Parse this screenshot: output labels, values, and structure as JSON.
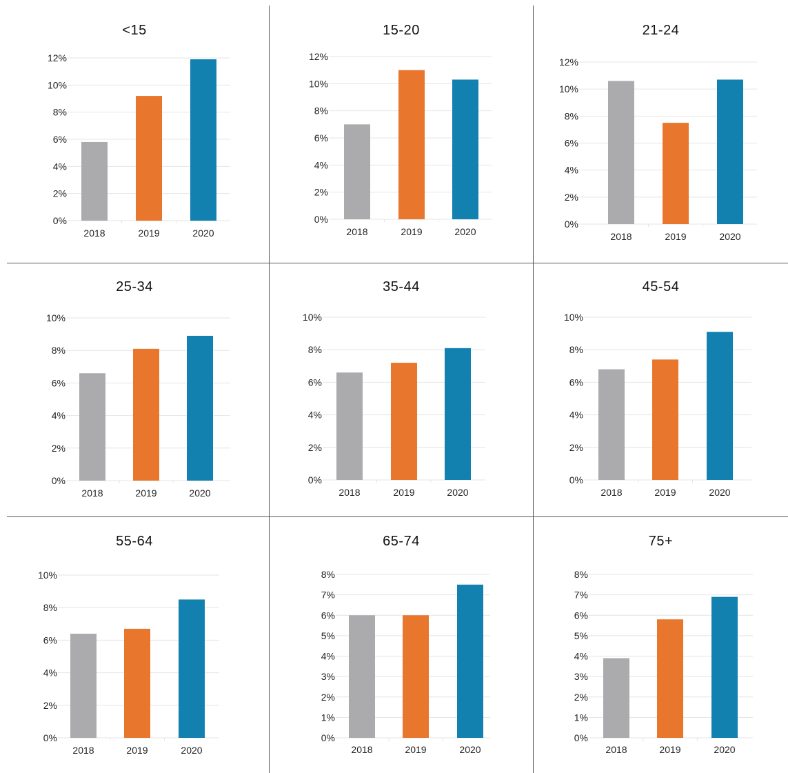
{
  "colors": {
    "2018": "#ABABAE",
    "2019": "#E8762D",
    "2020": "#1381B0",
    "gridline": "#E4E4E4",
    "divider": "#555555"
  },
  "chart_data": [
    {
      "type": "bar",
      "title": "<15",
      "categories": [
        "2018",
        "2019",
        "2020"
      ],
      "values": [
        5.8,
        9.2,
        11.9
      ],
      "ylim": [
        0,
        12
      ],
      "yticks": [
        0,
        2,
        4,
        6,
        8,
        10,
        12
      ],
      "ytick_labels": [
        "0%",
        "2%",
        "4%",
        "6%",
        "8%",
        "10%",
        "12%"
      ],
      "grid": true
    },
    {
      "type": "bar",
      "title": "15-20",
      "categories": [
        "2018",
        "2019",
        "2020"
      ],
      "values": [
        7.0,
        11.0,
        10.3
      ],
      "ylim": [
        0,
        12
      ],
      "yticks": [
        0,
        2,
        4,
        6,
        8,
        10,
        12
      ],
      "ytick_labels": [
        "0%",
        "2%",
        "4%",
        "6%",
        "8%",
        "10%",
        "12%"
      ],
      "grid": true
    },
    {
      "type": "bar",
      "title": "21-24",
      "categories": [
        "2018",
        "2019",
        "2020"
      ],
      "values": [
        10.6,
        7.5,
        10.7
      ],
      "ylim": [
        0,
        12
      ],
      "yticks": [
        0,
        2,
        4,
        6,
        8,
        10,
        12
      ],
      "ytick_labels": [
        "0%",
        "2%",
        "4%",
        "6%",
        "8%",
        "10%",
        "12%"
      ],
      "grid": true
    },
    {
      "type": "bar",
      "title": "25-34",
      "categories": [
        "2018",
        "2019",
        "2020"
      ],
      "values": [
        6.6,
        8.1,
        8.9
      ],
      "ylim": [
        0,
        10
      ],
      "yticks": [
        0,
        2,
        4,
        6,
        8,
        10
      ],
      "ytick_labels": [
        "0%",
        "2%",
        "4%",
        "6%",
        "8%",
        "10%"
      ],
      "grid": true
    },
    {
      "type": "bar",
      "title": "35-44",
      "categories": [
        "2018",
        "2019",
        "2020"
      ],
      "values": [
        6.6,
        7.2,
        8.1
      ],
      "ylim": [
        0,
        10
      ],
      "yticks": [
        0,
        2,
        4,
        6,
        8,
        10
      ],
      "ytick_labels": [
        "0%",
        "2%",
        "4%",
        "6%",
        "8%",
        "10%"
      ],
      "grid": true
    },
    {
      "type": "bar",
      "title": "45-54",
      "categories": [
        "2018",
        "2019",
        "2020"
      ],
      "values": [
        6.8,
        7.4,
        9.1
      ],
      "ylim": [
        0,
        10
      ],
      "yticks": [
        0,
        2,
        4,
        6,
        8,
        10
      ],
      "ytick_labels": [
        "0%",
        "2%",
        "4%",
        "6%",
        "8%",
        "10%"
      ],
      "grid": true
    },
    {
      "type": "bar",
      "title": "55-64",
      "categories": [
        "2018",
        "2019",
        "2020"
      ],
      "values": [
        6.4,
        6.7,
        8.5
      ],
      "ylim": [
        0,
        10
      ],
      "yticks": [
        0,
        2,
        4,
        6,
        8,
        10
      ],
      "ytick_labels": [
        "0%",
        "2%",
        "4%",
        "6%",
        "8%",
        "10%"
      ],
      "grid": true
    },
    {
      "type": "bar",
      "title": "65-74",
      "categories": [
        "2018",
        "2019",
        "2020"
      ],
      "values": [
        6.0,
        6.0,
        7.5
      ],
      "ylim": [
        0,
        8
      ],
      "yticks": [
        0,
        1,
        2,
        3,
        4,
        5,
        6,
        7,
        8
      ],
      "ytick_labels": [
        "0%",
        "1%",
        "2%",
        "3%",
        "4%",
        "5%",
        "6%",
        "7%",
        "8%"
      ],
      "grid": true
    },
    {
      "type": "bar",
      "title": "75+",
      "categories": [
        "2018",
        "2019",
        "2020"
      ],
      "values": [
        3.9,
        5.8,
        6.9
      ],
      "ylim": [
        0,
        8
      ],
      "yticks": [
        0,
        1,
        2,
        3,
        4,
        5,
        6,
        7,
        8
      ],
      "ytick_labels": [
        "0%",
        "1%",
        "2%",
        "3%",
        "4%",
        "5%",
        "6%",
        "7%",
        "8%"
      ],
      "grid": true
    }
  ]
}
